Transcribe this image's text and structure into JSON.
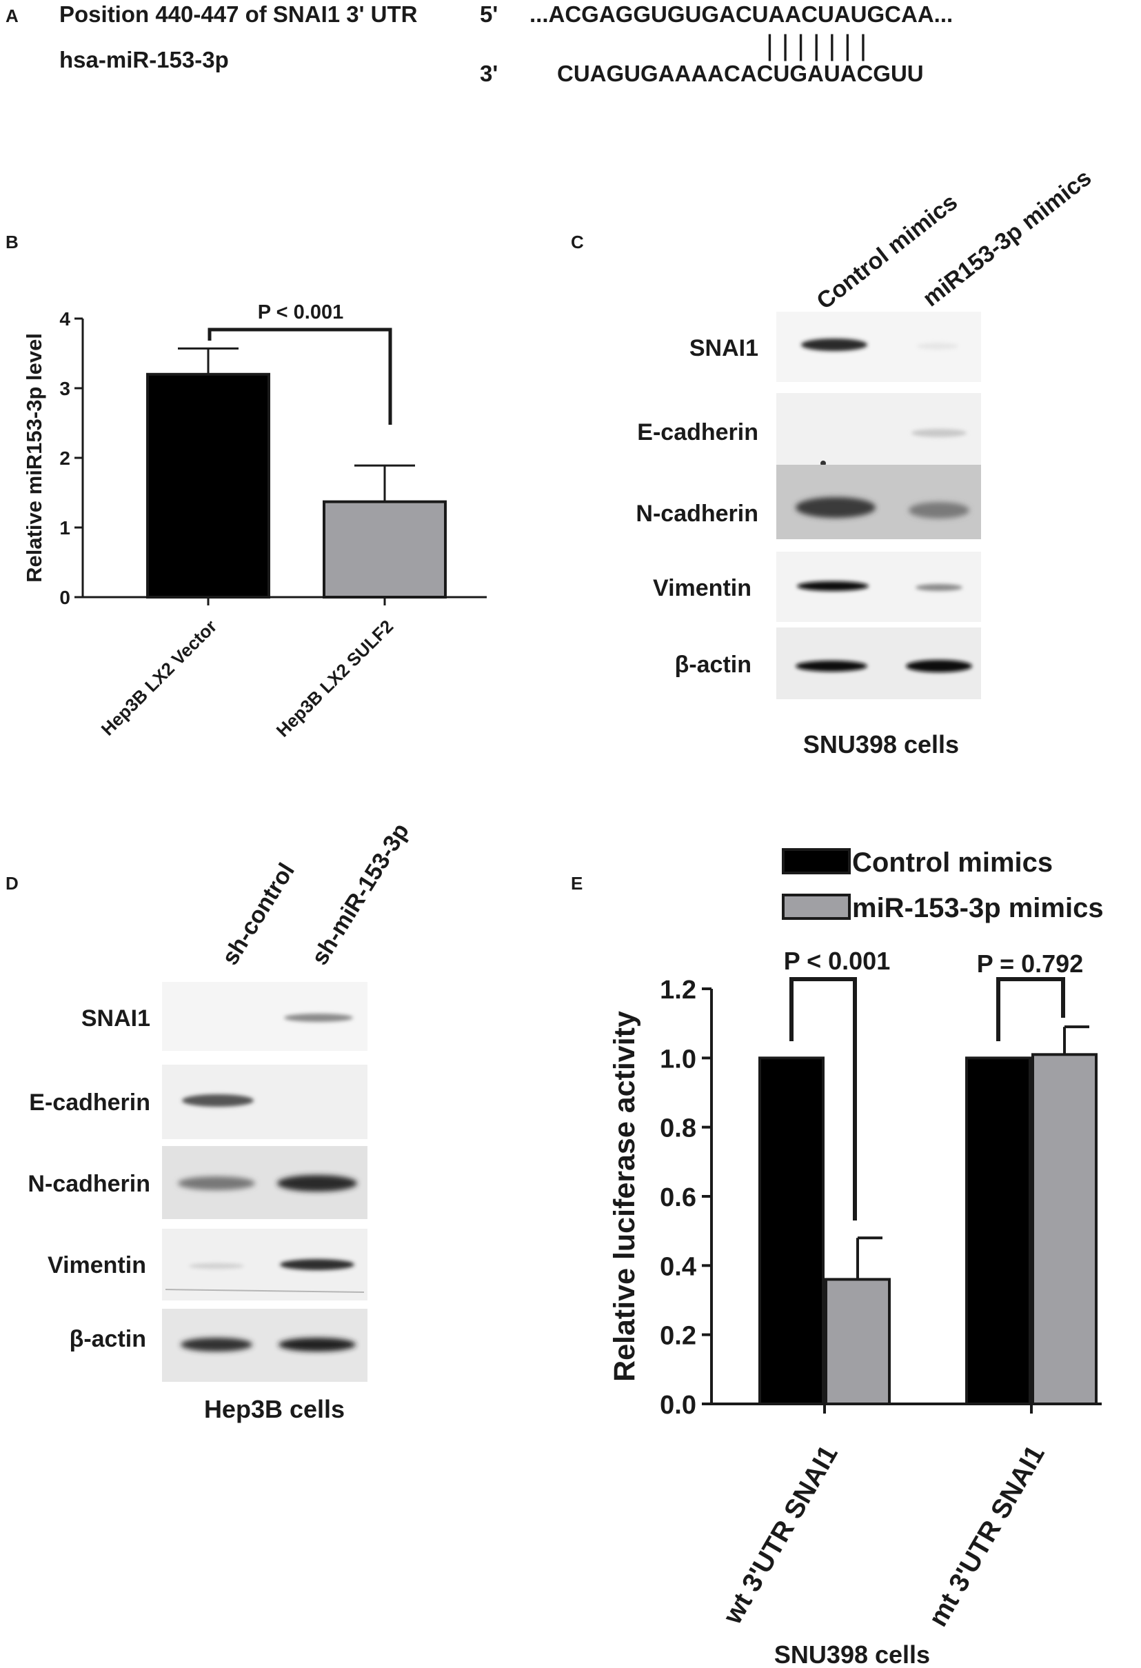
{
  "panel_a": {
    "letter": "A",
    "position_label": "Position 440-447 of SNAI1 3' UTR",
    "mirna_label": "hsa-miR-153-3p",
    "end5": "5'",
    "end3": "3'",
    "utr_sequence": "...ACGAGGUGUGACUAACUAUGCAA...",
    "mirna_sequence": "CUAGUGAAAACACUGAUACGUU",
    "pairing": "| | | | | | |"
  },
  "panel_b": {
    "letter": "B"
  },
  "panel_c": {
    "letter": "C",
    "lanes": [
      "Control mimics",
      "miR153-3p mimics"
    ],
    "blots": [
      "SNAI1",
      "E-cadherin",
      "N-cadherin",
      "Vimentin",
      "β-actin"
    ],
    "caption": "SNU398 cells"
  },
  "panel_d": {
    "letter": "D",
    "lanes": [
      "sh-control",
      "sh-miR-153-3p"
    ],
    "blots": [
      "SNAI1",
      "E-cadherin",
      "N-cadherin",
      "Vimentin",
      "β-actin"
    ],
    "caption": "Hep3B cells"
  },
  "panel_e": {
    "letter": "E",
    "caption": "SNU398 cells"
  },
  "chart_data": [
    {
      "type": "bar",
      "panel": "B",
      "categories": [
        "Hep3B LX2 Vector",
        "Hep3B LX2 SULF2"
      ],
      "values": [
        3.2,
        1.37
      ],
      "errors": [
        0.37,
        0.52
      ],
      "colors": [
        "#000000",
        "#a0a0a4"
      ],
      "ylabel": "Relative miR153-3p level",
      "ylim": [
        0,
        4
      ],
      "yticks": [
        "0",
        "1",
        "2",
        "3",
        "4"
      ],
      "annotation": "P < 0.001",
      "grid": false
    },
    {
      "type": "bar",
      "panel": "E",
      "categories": [
        "wt 3'UTR  SNAI1",
        "mt 3'UTR  SNAI1"
      ],
      "series": [
        {
          "name": "Control mimics",
          "values": [
            1.0,
            1.0
          ],
          "errors": [
            0,
            0
          ],
          "color": "#000000"
        },
        {
          "name": "miR-153-3p mimics",
          "values": [
            0.36,
            1.01
          ],
          "errors": [
            0.12,
            0.08
          ],
          "color": "#a0a0a4"
        }
      ],
      "ylabel": "Relative luciferase activity",
      "ylim": [
        0,
        1.2
      ],
      "yticks": [
        "0.0",
        "0.2",
        "0.4",
        "0.6",
        "0.8",
        "1.0",
        "1.2"
      ],
      "annotations": [
        "P < 0.001",
        "P = 0.792"
      ],
      "legend": "top",
      "grid": false
    }
  ]
}
